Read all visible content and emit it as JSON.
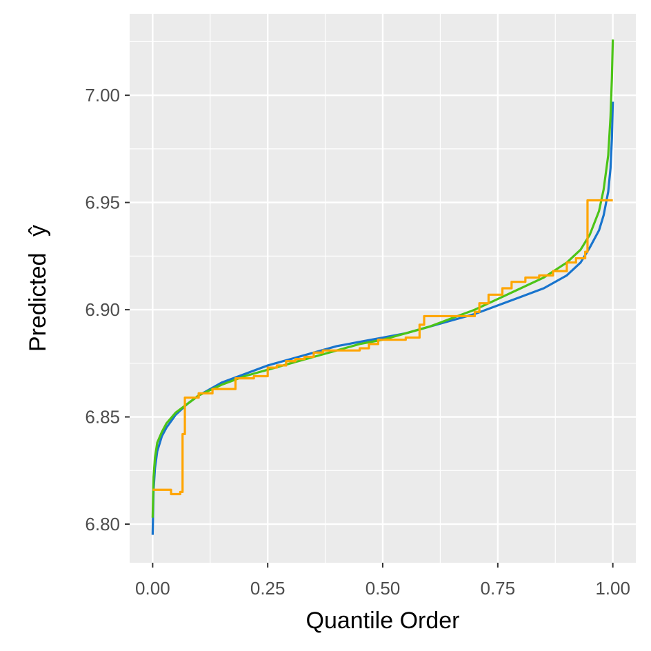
{
  "chart_data": {
    "type": "line",
    "title": "",
    "xlabel": "Quantile Order",
    "ylabel": "Predicted",
    "ylabel_symbol": "ŷ",
    "xlim": [
      -0.05,
      1.05
    ],
    "ylim": [
      6.782,
      7.038
    ],
    "x_ticks": [
      0.0,
      0.25,
      0.5,
      0.75,
      1.0
    ],
    "x_tick_labels": [
      "0.00",
      "0.25",
      "0.50",
      "0.75",
      "1.00"
    ],
    "y_ticks": [
      6.8,
      6.85,
      6.9,
      6.95,
      7.0
    ],
    "y_tick_labels": [
      "6.80",
      "6.85",
      "6.90",
      "6.95",
      "7.00"
    ],
    "grid": true,
    "legend": "none",
    "series": [
      {
        "color": "#1874CD",
        "x": [
          0.0,
          0.002,
          0.005,
          0.01,
          0.02,
          0.03,
          0.05,
          0.075,
          0.1,
          0.15,
          0.2,
          0.25,
          0.3,
          0.35,
          0.4,
          0.45,
          0.5,
          0.55,
          0.6,
          0.65,
          0.7,
          0.75,
          0.8,
          0.85,
          0.9,
          0.93,
          0.95,
          0.97,
          0.98,
          0.99,
          0.995,
          0.998,
          1.0
        ],
        "y": [
          6.795,
          6.816,
          6.826,
          6.834,
          6.841,
          6.845,
          6.851,
          6.856,
          6.86,
          6.866,
          6.87,
          6.874,
          6.877,
          6.88,
          6.883,
          6.885,
          6.887,
          6.889,
          6.892,
          6.895,
          6.898,
          6.902,
          6.906,
          6.91,
          6.916,
          6.922,
          6.929,
          6.937,
          6.944,
          6.955,
          6.966,
          6.98,
          6.997
        ]
      },
      {
        "color": "#4CC417",
        "x": [
          0.0,
          0.002,
          0.005,
          0.01,
          0.02,
          0.03,
          0.05,
          0.075,
          0.1,
          0.15,
          0.2,
          0.25,
          0.3,
          0.35,
          0.4,
          0.45,
          0.5,
          0.55,
          0.6,
          0.65,
          0.7,
          0.75,
          0.8,
          0.85,
          0.9,
          0.93,
          0.95,
          0.97,
          0.98,
          0.99,
          0.995,
          0.998,
          1.0
        ],
        "y": [
          6.803,
          6.822,
          6.831,
          6.838,
          6.843,
          6.847,
          6.852,
          6.856,
          6.86,
          6.865,
          6.869,
          6.872,
          6.875,
          6.878,
          6.881,
          6.884,
          6.886,
          6.889,
          6.892,
          6.896,
          6.9,
          6.905,
          6.91,
          6.915,
          6.922,
          6.928,
          6.935,
          6.946,
          6.956,
          6.972,
          6.99,
          7.008,
          7.026
        ]
      },
      {
        "color": "#FFA500",
        "step": true,
        "x": [
          0.0,
          0.04,
          0.06,
          0.065,
          0.07,
          0.1,
          0.13,
          0.18,
          0.22,
          0.25,
          0.27,
          0.29,
          0.31,
          0.33,
          0.35,
          0.37,
          0.4,
          0.45,
          0.47,
          0.49,
          0.52,
          0.55,
          0.57,
          0.58,
          0.59,
          0.67,
          0.7,
          0.71,
          0.73,
          0.76,
          0.78,
          0.79,
          0.81,
          0.84,
          0.87,
          0.9,
          0.92,
          0.94,
          0.945,
          1.0
        ],
        "y": [
          6.816,
          6.814,
          6.815,
          6.842,
          6.859,
          6.861,
          6.863,
          6.868,
          6.869,
          6.873,
          6.874,
          6.876,
          6.877,
          6.878,
          6.88,
          6.881,
          6.881,
          6.882,
          6.884,
          6.886,
          6.886,
          6.887,
          6.887,
          6.893,
          6.897,
          6.897,
          6.899,
          6.903,
          6.907,
          6.91,
          6.913,
          6.913,
          6.915,
          6.916,
          6.918,
          6.922,
          6.924,
          6.927,
          6.951,
          6.951
        ]
      }
    ]
  }
}
